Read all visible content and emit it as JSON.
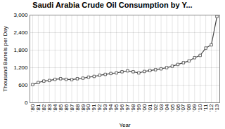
{
  "chart_data": {
    "type": "line",
    "title": "Saudi Arabia Crude Oil Consumption by Y...",
    "xlabel": "Year",
    "ylabel": "Thousand Barrels per Day",
    "x": [
      1980,
      1981,
      1982,
      1983,
      1984,
      1985,
      1986,
      1987,
      1988,
      1989,
      1990,
      1991,
      1992,
      1993,
      1994,
      1995,
      1996,
      1997,
      1998,
      1999,
      2000,
      2001,
      2002,
      2003,
      2004,
      2005,
      2006,
      2007,
      2008,
      2009,
      2010,
      2011,
      2012,
      2013
    ],
    "values": [
      620,
      690,
      740,
      760,
      800,
      820,
      800,
      790,
      820,
      840,
      875,
      900,
      940,
      970,
      1000,
      1020,
      1060,
      1090,
      1060,
      1020,
      1070,
      1100,
      1130,
      1160,
      1200,
      1250,
      1310,
      1370,
      1430,
      1540,
      1620,
      1870,
      1980,
      2950
    ],
    "xlim": [
      1979.5,
      2013.5
    ],
    "xticks": [
      {
        "value": 1980,
        "label": "'80"
      },
      {
        "value": 1981,
        "label": "'81"
      },
      {
        "value": 1982,
        "label": "'82"
      },
      {
        "value": 1983,
        "label": "'83"
      },
      {
        "value": 1984,
        "label": "'84"
      },
      {
        "value": 1985,
        "label": "'85"
      },
      {
        "value": 1986,
        "label": "'86"
      },
      {
        "value": 1987,
        "label": "'87"
      },
      {
        "value": 1988,
        "label": "'88"
      },
      {
        "value": 1989,
        "label": "'89"
      },
      {
        "value": 1990,
        "label": "'90"
      },
      {
        "value": 1991,
        "label": "'91"
      },
      {
        "value": 1992,
        "label": "'92"
      },
      {
        "value": 1993,
        "label": "'93"
      },
      {
        "value": 1994,
        "label": "'94"
      },
      {
        "value": 1995,
        "label": "'95"
      },
      {
        "value": 1996,
        "label": "'96"
      },
      {
        "value": 1997,
        "label": "'97"
      },
      {
        "value": 1998,
        "label": "'98"
      },
      {
        "value": 1999,
        "label": "'99"
      },
      {
        "value": 2000,
        "label": "'00"
      },
      {
        "value": 2001,
        "label": "'01"
      },
      {
        "value": 2002,
        "label": "'02"
      },
      {
        "value": 2003,
        "label": "'03"
      },
      {
        "value": 2004,
        "label": "'04"
      },
      {
        "value": 2005,
        "label": "'05"
      },
      {
        "value": 2006,
        "label": "'06"
      },
      {
        "value": 2007,
        "label": "'07"
      },
      {
        "value": 2008,
        "label": "'08"
      },
      {
        "value": 2009,
        "label": "'09"
      },
      {
        "value": 2010,
        "label": "'10"
      },
      {
        "value": 2011,
        "label": "'11"
      },
      {
        "value": 2012,
        "label": "'12"
      },
      {
        "value": 2013,
        "label": "'13"
      }
    ],
    "ylim": [
      0,
      3000
    ],
    "yticks": [
      0,
      600,
      {
        "value": 1200,
        "label": "1,200"
      },
      {
        "value": 1800,
        "label": "1,800"
      },
      {
        "value": 2400,
        "label": "2,400"
      },
      {
        "value": 3000,
        "label": "3,000"
      }
    ],
    "color": "#444444",
    "marker": "square",
    "grid": true
  }
}
